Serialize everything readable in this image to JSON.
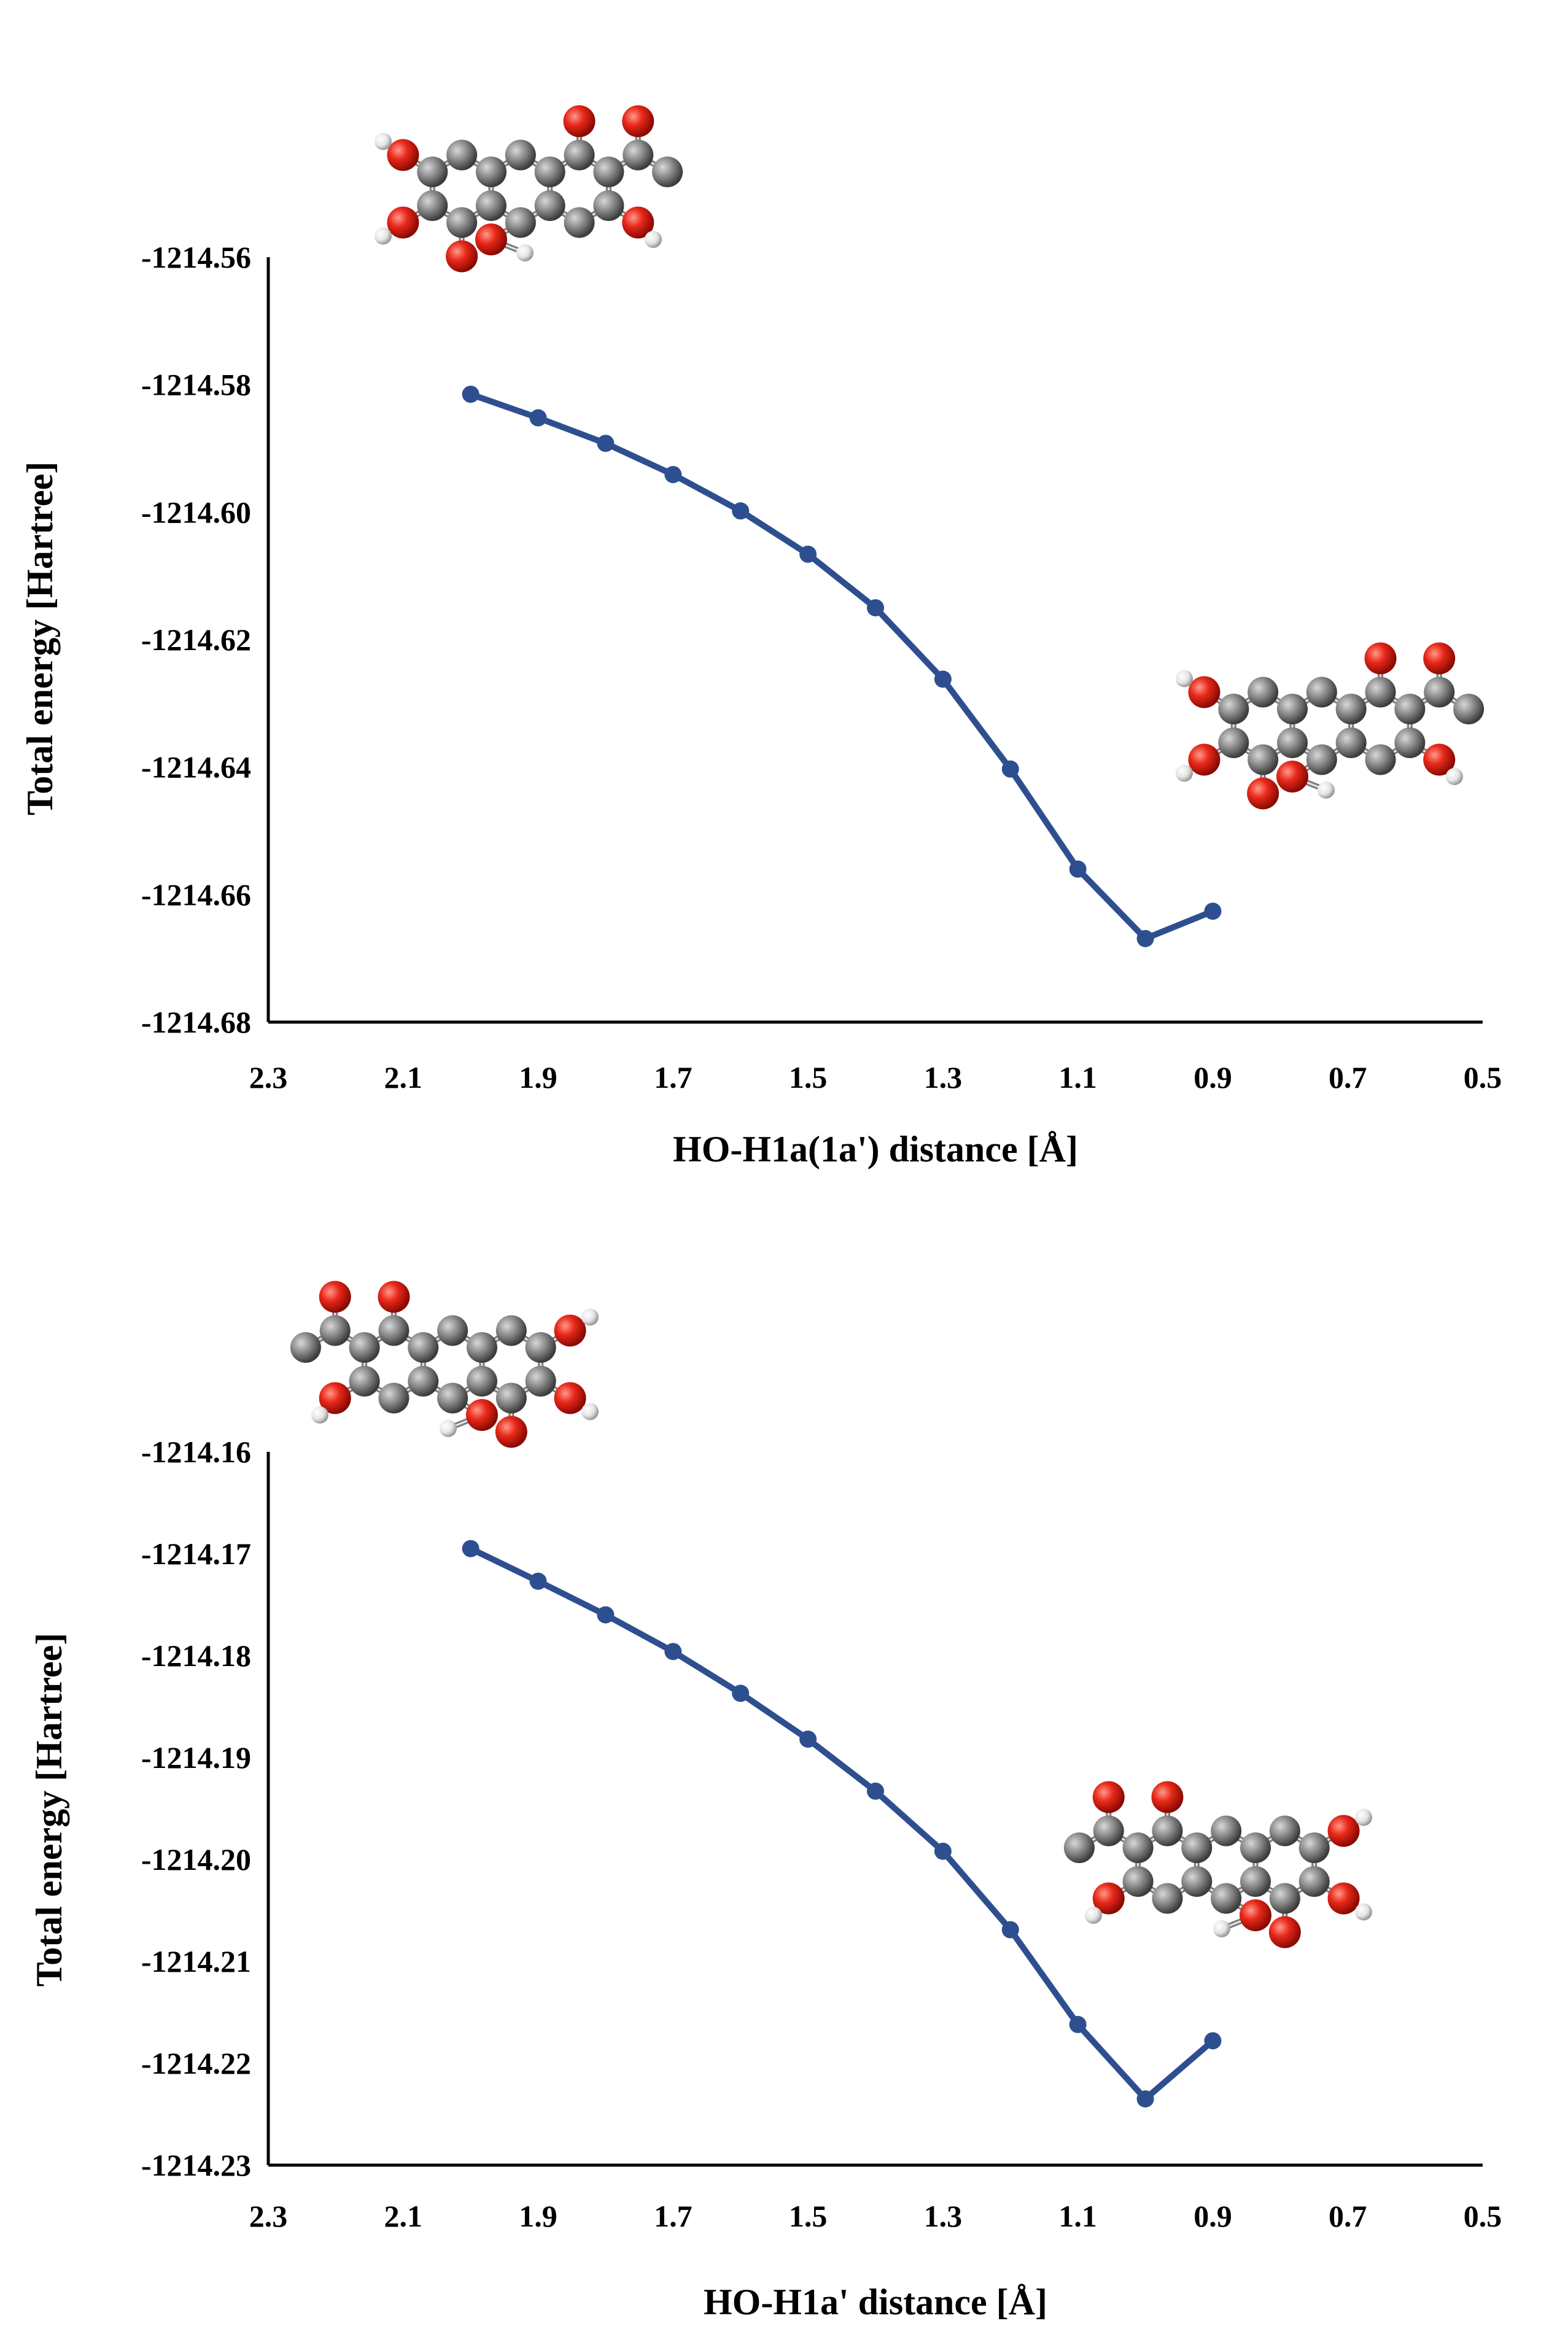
{
  "chart_data": [
    {
      "type": "line",
      "title": "",
      "xlabel": "HO-H1a(1a') distance [Å]",
      "ylabel": "Total energy [Hartree]",
      "xlim": [
        2.3,
        0.5
      ],
      "ylim": [
        -1214.68,
        -1214.56
      ],
      "x_reversed": true,
      "xticks": [
        "2.3",
        "2.1",
        "1.9",
        "1.7",
        "1.5",
        "1.3",
        "1.1",
        "0.9",
        "0.7",
        "0.5"
      ],
      "yticks": [
        "-1214.56",
        "-1214.58",
        "-1214.60",
        "-1214.62",
        "-1214.64",
        "-1214.66",
        "-1214.68"
      ],
      "grid": false,
      "line_color": "#2e4f8f",
      "marker_color": "#2e4f8f",
      "series": [
        {
          "name": "energy",
          "x": [
            2.0,
            1.9,
            1.8,
            1.7,
            1.6,
            1.5,
            1.4,
            1.3,
            1.2,
            1.1,
            1.0,
            0.9
          ],
          "y": [
            -1214.5815,
            -1214.5852,
            -1214.5892,
            -1214.5941,
            -1214.5998,
            -1214.6066,
            -1214.615,
            -1214.6262,
            -1214.6403,
            -1214.656,
            -1214.6669,
            -1214.6626
          ]
        }
      ],
      "molecule_images": [
        "reactant-molecule",
        "product-molecule"
      ]
    },
    {
      "type": "line",
      "title": "",
      "xlabel": "HO-H1a' distance [Å]",
      "ylabel": "Total energy [Hartree]",
      "xlim": [
        2.3,
        0.5
      ],
      "ylim": [
        -1214.23,
        -1214.16
      ],
      "x_reversed": true,
      "xticks": [
        "2.3",
        "2.1",
        "1.9",
        "1.7",
        "1.5",
        "1.3",
        "1.1",
        "0.9",
        "0.7",
        "0.5"
      ],
      "yticks": [
        "-1214.16",
        "-1214.17",
        "-1214.18",
        "-1214.19",
        "-1214.20",
        "-1214.21",
        "-1214.22",
        "-1214.23"
      ],
      "grid": false,
      "line_color": "#2e4f8f",
      "marker_color": "#2e4f8f",
      "series": [
        {
          "name": "energy",
          "x": [
            2.0,
            1.9,
            1.8,
            1.7,
            1.6,
            1.5,
            1.4,
            1.3,
            1.2,
            1.1,
            1.0,
            0.9
          ],
          "y": [
            -1214.1695,
            -1214.1727,
            -1214.176,
            -1214.1796,
            -1214.1837,
            -1214.1882,
            -1214.1933,
            -1214.1992,
            -1214.2069,
            -1214.2162,
            -1214.2235,
            -1214.2178
          ]
        }
      ],
      "molecule_images": [
        "reactant-molecule",
        "product-molecule"
      ]
    }
  ]
}
